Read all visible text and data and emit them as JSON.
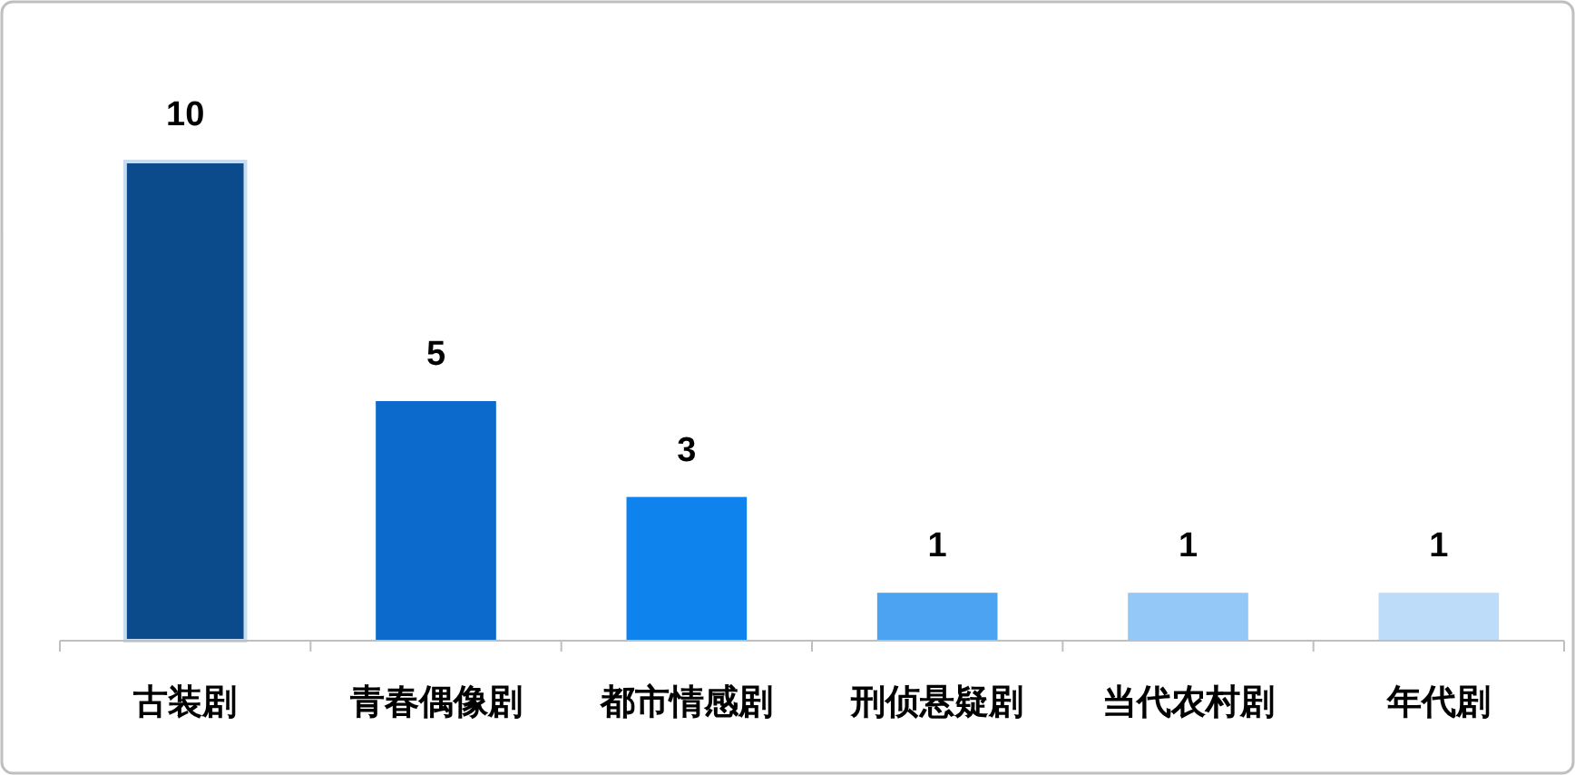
{
  "chart_data": {
    "type": "bar",
    "categories": [
      "古装剧",
      "青春偶像剧",
      "都市情感剧",
      "刑侦悬疑剧",
      "当代农村剧",
      "年代剧"
    ],
    "values": [
      10,
      5,
      3,
      1,
      1,
      1
    ],
    "colors": [
      "#0b4a8b",
      "#0b6acc",
      "#0e83ee",
      "#4ca3f1",
      "#94c8f7",
      "#bcdcf9"
    ],
    "data_labels": true
  }
}
